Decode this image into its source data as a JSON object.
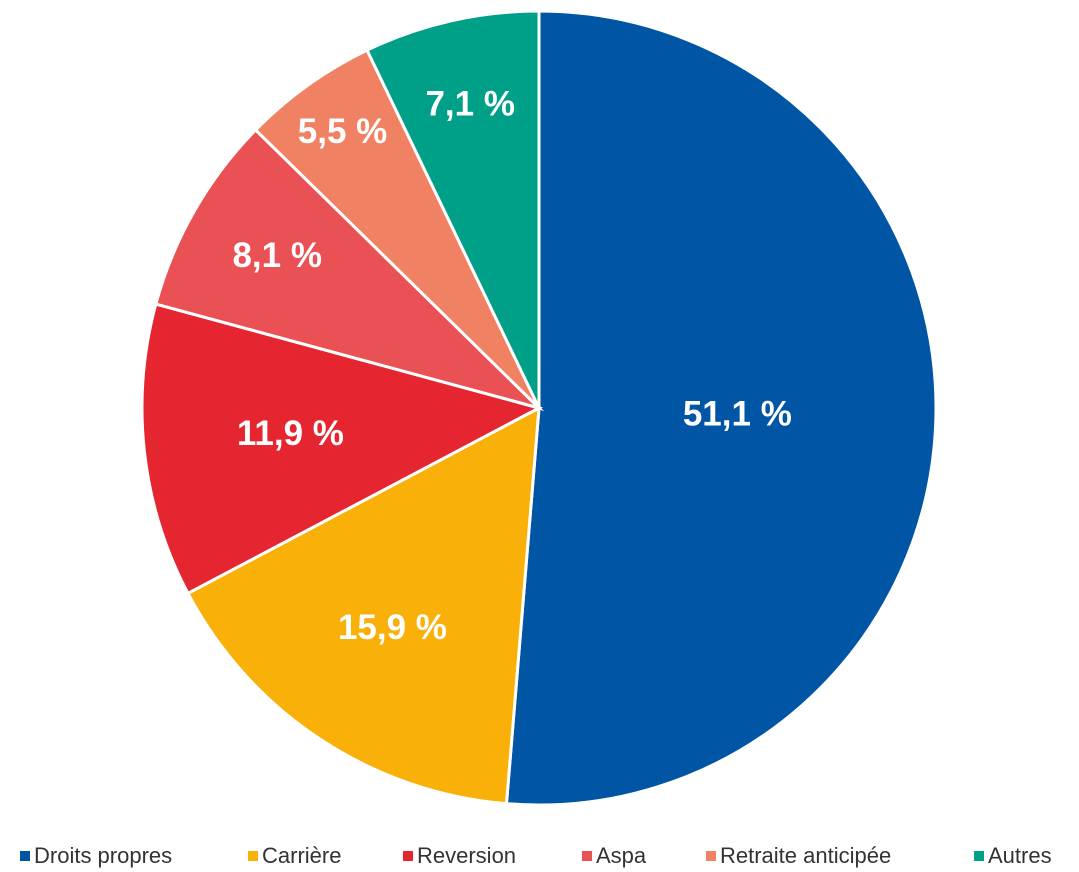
{
  "chart_data": {
    "type": "pie",
    "categories": [
      "Droits propres",
      "Carrière",
      "Reversion",
      "Aspa",
      "Retraite anticipée",
      "Autres"
    ],
    "values": [
      51.1,
      15.9,
      11.9,
      8.1,
      5.5,
      7.1
    ],
    "value_labels": [
      "51,1 %",
      "15,9 %",
      "11,9 %",
      "8,1 %",
      "5,5 %",
      "7,1 %"
    ],
    "colors": [
      "#0055a4",
      "#f9b008",
      "#e52630",
      "#ea5155",
      "#f08163",
      "#009f87"
    ],
    "legend": "bottom"
  }
}
